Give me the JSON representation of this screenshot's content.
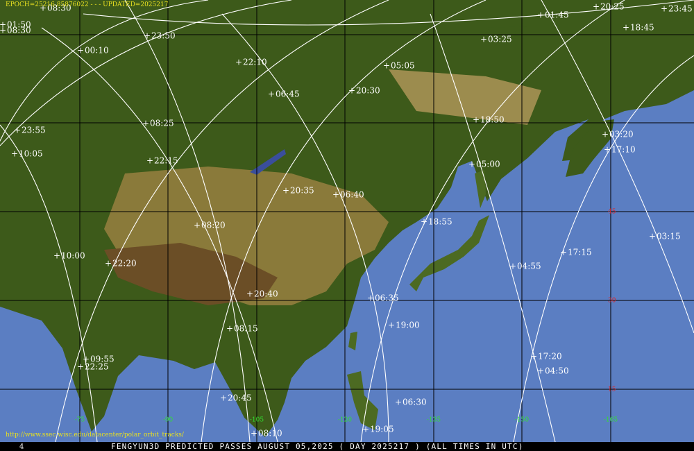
{
  "header": {
    "epoch": "EPOCH=25216.85876022 - - - UPDATED=2025217"
  },
  "footer": {
    "page": "4",
    "title": "FENGYUN3D PREDICTED PASSES AUGUST 05,2025 ( DAY 2025217 ) (ALL TIMES IN UTC)"
  },
  "url": "http://www.ssec.wisc.edu/datacenter/polar_orbit_tracks/",
  "latitude_labels": [
    "45",
    "30",
    "15"
  ],
  "longitude_labels": [
    "-75",
    "-90",
    "-105",
    "-120",
    "-135",
    "-150",
    "-165"
  ],
  "pass_times": [
    "08:30",
    "01:50",
    "08:30",
    "23:50",
    "00:10",
    "22:10",
    "05:05",
    "03:25",
    "01:45",
    "20:25",
    "23:45",
    "18:45",
    "06:45",
    "20:30",
    "18:50",
    "08:25",
    "23:55",
    "10:05",
    "22:15",
    "05:00",
    "03:20",
    "17:10",
    "20:35",
    "06:40",
    "18:55",
    "08:20",
    "03:15",
    "17:15",
    "10:00",
    "22:20",
    "04:55",
    "20:40",
    "06:35",
    "19:00",
    "08:15",
    "09:55",
    "22:25",
    "17:20",
    "04:50",
    "20:45",
    "06:30",
    "19:05",
    "08:10"
  ]
}
